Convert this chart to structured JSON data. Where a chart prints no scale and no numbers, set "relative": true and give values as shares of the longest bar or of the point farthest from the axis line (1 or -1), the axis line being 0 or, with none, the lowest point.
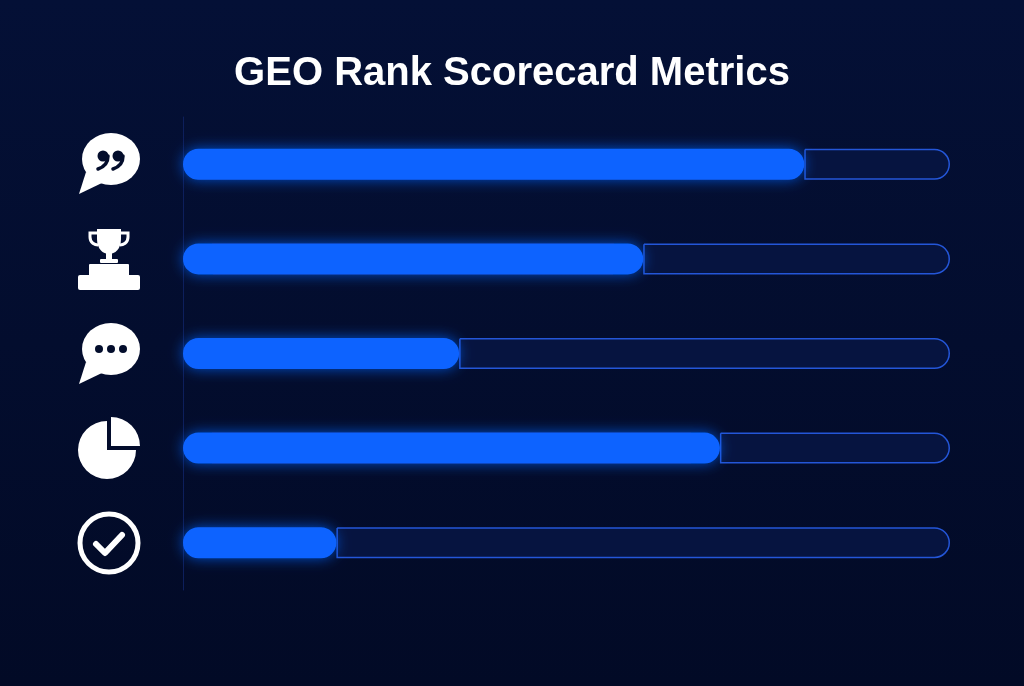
{
  "chart_data": {
    "type": "bar",
    "title": "GEO Rank Scorecard Metrics",
    "orientation": "horizontal",
    "stacked": true,
    "relative": true,
    "categories": [
      null,
      null,
      null,
      null,
      null
    ],
    "series": [
      {
        "color": "#0b63ff",
        "values": [
          0.81,
          0.6,
          0.36,
          0.7,
          0.2
        ]
      },
      {
        "color": "#061440",
        "values": [
          0.19,
          0.4,
          0.64,
          0.3,
          0.8
        ]
      }
    ]
  }
}
